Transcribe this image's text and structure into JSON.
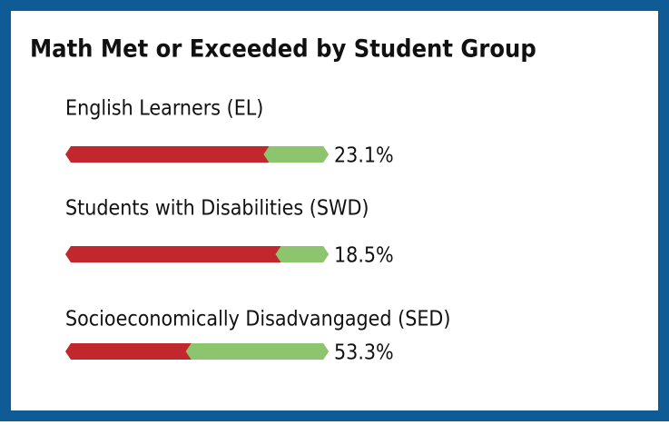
{
  "chart_data": {
    "type": "progress_bar",
    "title": "Math Met or Exceeded by Student Group",
    "categories": [
      "English Learners (EL)",
      "Students with Disabilities (SWD)",
      "Socioeconomically Disadvangaged (SED)"
    ],
    "values": [
      23.1,
      18.5,
      53.3
    ],
    "value_labels": [
      "23.1%",
      "18.5%",
      "53.3%"
    ],
    "xlim": [
      0,
      100
    ],
    "color": "#8cc56e",
    "track_color": "#c1272d",
    "border_color": "#0f5b95"
  }
}
